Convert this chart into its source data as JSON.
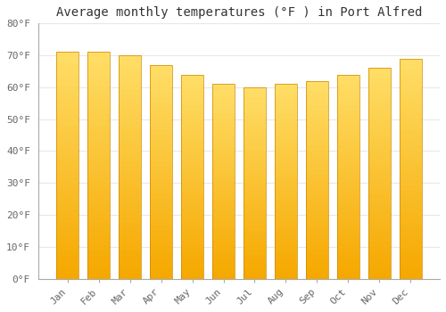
{
  "title": "Average monthly temperatures (°F ) in Port Alfred",
  "months": [
    "Jan",
    "Feb",
    "Mar",
    "Apr",
    "May",
    "Jun",
    "Jul",
    "Aug",
    "Sep",
    "Oct",
    "Nov",
    "Dec"
  ],
  "values": [
    71,
    71,
    70,
    67,
    64,
    61,
    60,
    61,
    62,
    64,
    66,
    69
  ],
  "ylim": [
    0,
    80
  ],
  "yticks": [
    0,
    10,
    20,
    30,
    40,
    50,
    60,
    70,
    80
  ],
  "ytick_labels": [
    "0°F",
    "10°F",
    "20°F",
    "30°F",
    "40°F",
    "50°F",
    "60°F",
    "70°F",
    "80°F"
  ],
  "bar_color_bottom": "#F5A800",
  "bar_color_top": "#FFD966",
  "background_color": "#FFFFFF",
  "grid_color": "#E8E8E8",
  "title_fontsize": 10,
  "tick_fontsize": 8,
  "bar_width": 0.7
}
